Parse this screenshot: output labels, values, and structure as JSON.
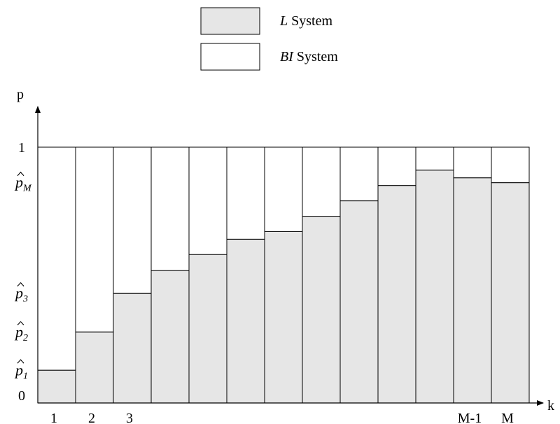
{
  "chart_data": {
    "type": "bar",
    "xlabel": "k",
    "ylabel": "p",
    "ylim": [
      0,
      1
    ],
    "grid": false,
    "legend_position": "top-center",
    "legend": [
      {
        "italic": "L",
        "text": " System",
        "fill": "#e6e6e6"
      },
      {
        "italic": "BI",
        "text": " System",
        "fill": "#ffffff"
      }
    ],
    "x_tick_labels": [
      "1",
      "2",
      "3",
      "",
      "",
      "",
      "",
      "",
      "",
      "",
      "",
      "M-1",
      "M"
    ],
    "y_tick_labels": [
      {
        "value": 0,
        "text": "0",
        "line": "none"
      },
      {
        "value": 0.128,
        "base": "p",
        "sub": "1",
        "line": "none"
      },
      {
        "value": 0.277,
        "base": "p",
        "sub": "2",
        "line": "dashed"
      },
      {
        "value": 0.429,
        "base": "p",
        "sub": "3",
        "line": "dashed"
      },
      {
        "value": 0.861,
        "base": "p",
        "sub": "M",
        "line": "dashed"
      },
      {
        "value": 1,
        "text": "1",
        "line": "dashdot"
      }
    ],
    "series": [
      {
        "fill": "#e6e6e6",
        "values": [
          0.128,
          0.277,
          0.429,
          0.519,
          0.58,
          0.64,
          0.67,
          0.73,
          0.79,
          0.85,
          0.91,
          0.88,
          0.861
        ]
      },
      {
        "fill": "#ffffff",
        "values": [
          0.872,
          0.723,
          0.571,
          0.481,
          0.42,
          0.36,
          0.33,
          0.27,
          0.21,
          0.15,
          0.09,
          0.12,
          0.139
        ]
      }
    ],
    "top_values": [
      1,
      1,
      1,
      1,
      1,
      1,
      1,
      1,
      1,
      1,
      1,
      1,
      1
    ],
    "lower_values": [
      0.128,
      0.277,
      0.429,
      0.519,
      0.58,
      0.64,
      0.67,
      0.73,
      0.79,
      0.85,
      0.91,
      0.88,
      0.861
    ]
  }
}
